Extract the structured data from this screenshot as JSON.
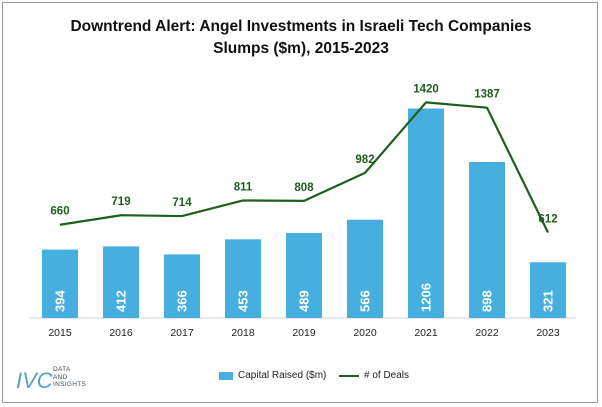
{
  "title_line1": "Downtrend Alert: Angel Investments in Israeli Tech Companies",
  "title_line2": "Slumps ($m), 2015-2023",
  "colors": {
    "bar": "#46afe0",
    "line": "#1e5f1e",
    "bar_label": "#ffffff",
    "line_label": "#1e5f1e"
  },
  "logo": {
    "mark": "IVC",
    "line1": "DATA",
    "line2": "AND",
    "line3": "INSIGHTS"
  },
  "legend": {
    "bar_label": "Capital Raised ($m)",
    "line_label": "# of Deals",
    "placement": "bottom"
  },
  "chart_data": {
    "type": "bar",
    "title": "Downtrend Alert: Angel Investments in Israeli Tech Companies Slumps ($m), 2015-2023",
    "categories": [
      "2015",
      "2016",
      "2017",
      "2018",
      "2019",
      "2020",
      "2021",
      "2022",
      "2023"
    ],
    "series": [
      {
        "name": "Capital Raised ($m)",
        "type": "bar",
        "values": [
          394,
          412,
          366,
          453,
          489,
          566,
          1206,
          898,
          321
        ]
      },
      {
        "name": "# of Deals",
        "type": "line",
        "values": [
          660,
          719,
          714,
          811,
          808,
          982,
          1420,
          1387,
          612
        ]
      }
    ],
    "grid": false
  }
}
